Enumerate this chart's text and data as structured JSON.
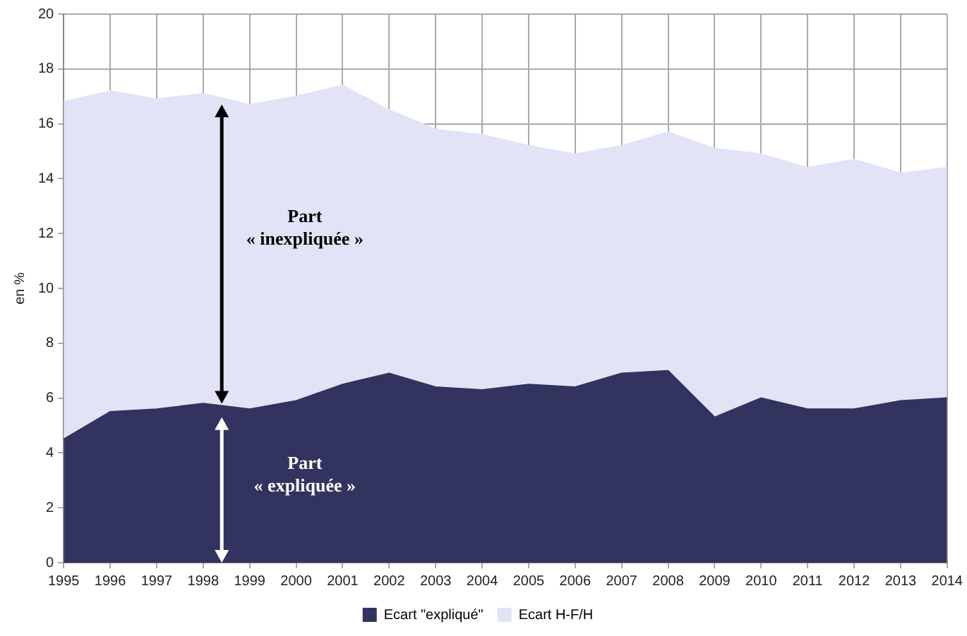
{
  "chart_data": {
    "type": "area",
    "ylabel": "en %",
    "categories": [
      "1995",
      "1996",
      "1997",
      "1998",
      "1999",
      "2000",
      "2001",
      "2002",
      "2003",
      "2004",
      "2005",
      "2006",
      "2007",
      "2008",
      "2009",
      "2010",
      "2011",
      "2012",
      "2013",
      "2014"
    ],
    "series": [
      {
        "name": "Ecart \"expliqué\"",
        "color": "#33335f",
        "values": [
          4.5,
          5.5,
          5.6,
          5.8,
          5.6,
          5.9,
          6.5,
          6.9,
          6.4,
          6.3,
          6.5,
          6.4,
          6.9,
          7.0,
          5.3,
          6.0,
          5.6,
          5.6,
          5.9,
          6.0
        ]
      },
      {
        "name": "Ecart H-F/H",
        "color": "#e3e3f7",
        "values": [
          16.8,
          17.2,
          16.9,
          17.1,
          16.7,
          17.0,
          17.4,
          16.5,
          15.8,
          15.6,
          15.2,
          14.9,
          15.2,
          15.7,
          15.1,
          14.9,
          14.4,
          14.7,
          14.2,
          14.4
        ]
      }
    ],
    "ylim": [
      0,
      20
    ],
    "yticks": [
      0,
      2,
      4,
      6,
      8,
      10,
      12,
      14,
      16,
      18,
      20
    ],
    "grid": true,
    "legend": "bottom",
    "annotations": [
      "Part\n« inexpliquée »",
      "Part\n« expliquée »"
    ]
  }
}
